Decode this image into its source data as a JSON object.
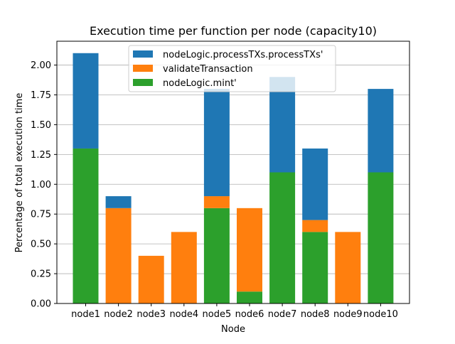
{
  "chart_data": {
    "type": "bar",
    "stacked": true,
    "title": "Execution time per function per node (capacity10)",
    "xlabel": "Node",
    "ylabel": "Percentage of total execution time",
    "categories": [
      "node1",
      "node2",
      "node3",
      "node4",
      "node5",
      "node6",
      "node7",
      "node8",
      "node9",
      "node10"
    ],
    "ylim": [
      0,
      2.2
    ],
    "yticks": [
      "0.00",
      "0.25",
      "0.50",
      "0.75",
      "1.00",
      "1.25",
      "1.50",
      "1.75",
      "2.00"
    ],
    "grid": "y",
    "legend_position": "top",
    "series": [
      {
        "name": "nodeLogic.mint'",
        "color": "#2ca02c",
        "values": [
          1.3,
          0,
          0,
          0,
          0.8,
          0.1,
          1.1,
          0.6,
          0,
          1.1
        ]
      },
      {
        "name": "validateTransaction",
        "color": "#ff7f0e",
        "values": [
          0,
          0.8,
          0.4,
          0.6,
          0.1,
          0.7,
          0,
          0.1,
          0.6,
          0
        ]
      },
      {
        "name": "nodeLogic.processTXs.processTXs'",
        "color": "#1f77b4",
        "values": [
          0.8,
          0.1,
          0,
          0,
          0.9,
          0,
          0.8,
          0.6,
          0,
          0.7
        ]
      }
    ],
    "legend_order": [
      "nodeLogic.processTXs.processTXs'",
      "validateTransaction",
      "nodeLogic.mint'"
    ]
  }
}
